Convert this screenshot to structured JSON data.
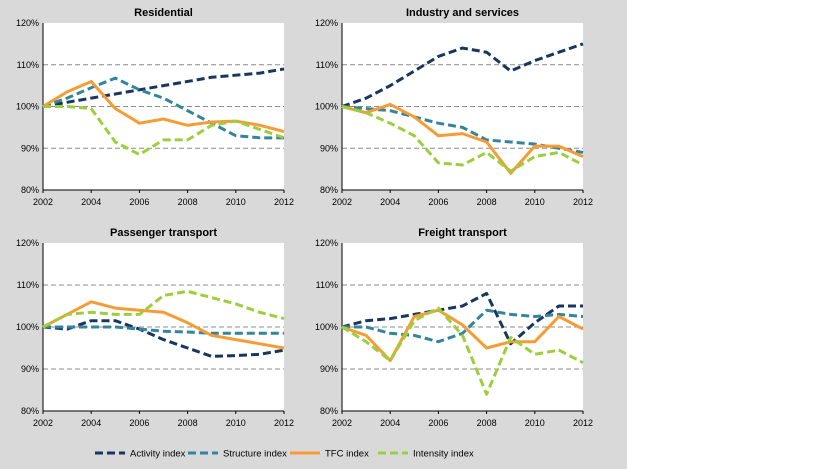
{
  "colors": {
    "figure_background": "#d9d9d9",
    "plot_background": "#ffffff",
    "gridline": "#8c8c8c",
    "activity": "#17375e",
    "structure": "#31859c",
    "tfc": "#f79c34",
    "intensity": "#9bcf3c"
  },
  "legend": [
    {
      "key": "activity",
      "label": "Activity index"
    },
    {
      "key": "structure",
      "label": "Structure index"
    },
    {
      "key": "tfc",
      "label": "TFC index"
    },
    {
      "key": "intensity",
      "label": "Intensity index"
    }
  ],
  "chart_data": [
    {
      "type": "line",
      "title": "Residential",
      "x": [
        2002,
        2003,
        2004,
        2005,
        2006,
        2007,
        2008,
        2009,
        2010,
        2011,
        2012
      ],
      "x_tick_labels": [
        "2002",
        "2004",
        "2006",
        "2008",
        "2010",
        "2012"
      ],
      "y_tick_labels": [
        "80%",
        "90%",
        "100%",
        "110%",
        "120%"
      ],
      "ylim": [
        80,
        120
      ],
      "xlim": [
        2002,
        2012
      ],
      "series": [
        {
          "key": "activity",
          "name": "Activity index",
          "values": [
            100,
            101,
            102,
            103,
            104,
            105,
            106,
            107,
            107.5,
            108,
            109
          ]
        },
        {
          "key": "structure",
          "name": "Structure index",
          "values": [
            100,
            102,
            104.5,
            106.8,
            104,
            102,
            99,
            96,
            93,
            92.5,
            92.5
          ]
        },
        {
          "key": "tfc",
          "name": "TFC index",
          "values": [
            100,
            103.5,
            106,
            99.5,
            96,
            97,
            95.5,
            96.3,
            96.5,
            95.5,
            94
          ]
        },
        {
          "key": "intensity",
          "name": "Intensity index",
          "values": [
            100,
            100,
            99.5,
            91.5,
            88.5,
            92,
            92,
            95.5,
            96.5,
            94.5,
            92.5
          ]
        }
      ]
    },
    {
      "type": "line",
      "title": "Industry and services",
      "x": [
        2002,
        2003,
        2004,
        2005,
        2006,
        2007,
        2008,
        2009,
        2010,
        2011,
        2012
      ],
      "x_tick_labels": [
        "2002",
        "2004",
        "2006",
        "2008",
        "2010",
        "2012"
      ],
      "y_tick_labels": [
        "80%",
        "90%",
        "100%",
        "110%",
        "120%"
      ],
      "ylim": [
        80,
        120
      ],
      "xlim": [
        2002,
        2012
      ],
      "series": [
        {
          "key": "activity",
          "name": "Activity index",
          "values": [
            100,
            102,
            105,
            108.5,
            112,
            114,
            113,
            108.5,
            111,
            113,
            115
          ]
        },
        {
          "key": "structure",
          "name": "Structure index",
          "values": [
            100,
            99.5,
            99,
            97.5,
            96,
            95,
            92,
            91.5,
            91,
            90,
            89
          ]
        },
        {
          "key": "tfc",
          "name": "TFC index",
          "values": [
            100,
            98.5,
            100.5,
            97.5,
            93,
            93.5,
            91.5,
            84,
            90.5,
            90.5,
            88
          ]
        },
        {
          "key": "intensity",
          "name": "Intensity index",
          "values": [
            100,
            98.5,
            96,
            93,
            86.5,
            86,
            89,
            84.5,
            88,
            89,
            86
          ]
        }
      ]
    },
    {
      "type": "line",
      "title": "Passenger transport",
      "x": [
        2002,
        2003,
        2004,
        2005,
        2006,
        2007,
        2008,
        2009,
        2010,
        2011,
        2012
      ],
      "x_tick_labels": [
        "2002",
        "2004",
        "2006",
        "2008",
        "2010",
        "2012"
      ],
      "y_tick_labels": [
        "80%",
        "90%",
        "100%",
        "110%",
        "120%"
      ],
      "ylim": [
        80,
        120
      ],
      "xlim": [
        2002,
        2012
      ],
      "series": [
        {
          "key": "activity",
          "name": "Activity index",
          "values": [
            100,
            99.5,
            101.5,
            101.5,
            99.5,
            97,
            95,
            93,
            93.2,
            93.5,
            94.5
          ]
        },
        {
          "key": "structure",
          "name": "Structure index",
          "values": [
            100,
            100,
            100,
            100,
            99.5,
            99,
            98.8,
            98.5,
            98.5,
            98.5,
            98.5
          ]
        },
        {
          "key": "tfc",
          "name": "TFC index",
          "values": [
            100,
            103,
            106,
            104.5,
            104,
            103.5,
            101,
            98,
            97,
            96,
            95
          ]
        },
        {
          "key": "intensity",
          "name": "Intensity index",
          "values": [
            100,
            103,
            103.5,
            103,
            103,
            107.5,
            108.5,
            107,
            105.5,
            103.5,
            102
          ]
        }
      ]
    },
    {
      "type": "line",
      "title": "Freight transport",
      "x": [
        2002,
        2003,
        2004,
        2005,
        2006,
        2007,
        2008,
        2009,
        2010,
        2011,
        2012
      ],
      "x_tick_labels": [
        "2002",
        "2004",
        "2006",
        "2008",
        "2010",
        "2012"
      ],
      "y_tick_labels": [
        "80%",
        "90%",
        "100%",
        "110%",
        "120%"
      ],
      "ylim": [
        80,
        120
      ],
      "xlim": [
        2002,
        2012
      ],
      "series": [
        {
          "key": "activity",
          "name": "Activity index",
          "values": [
            100,
            101.5,
            102,
            103,
            104,
            105,
            108,
            96,
            101,
            105,
            105
          ]
        },
        {
          "key": "structure",
          "name": "Structure index",
          "values": [
            100,
            100,
            98.5,
            98,
            96.5,
            98.5,
            104,
            103,
            102.5,
            103,
            102.5
          ]
        },
        {
          "key": "tfc",
          "name": "TFC index",
          "values": [
            100,
            98,
            92,
            102.5,
            104,
            100.5,
            95,
            96.5,
            96.5,
            102.5,
            99.5
          ]
        },
        {
          "key": "intensity",
          "name": "Intensity index",
          "values": [
            100,
            96.5,
            92,
            101.5,
            104.5,
            98,
            84,
            97.5,
            93.5,
            94.5,
            91.5
          ]
        }
      ]
    }
  ]
}
